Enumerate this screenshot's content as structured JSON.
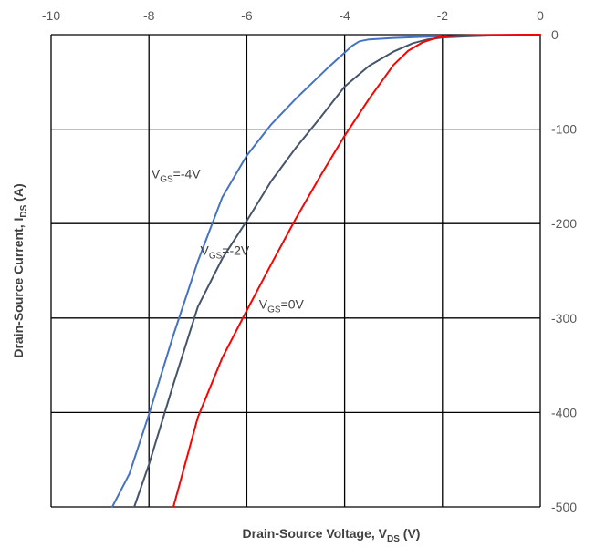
{
  "chart_data": {
    "type": "line",
    "xlabel": {
      "main": "Drain-Source Voltage, V",
      "sub": "DS",
      "tail": " (V)"
    },
    "ylabel": {
      "main": "Drain-Source Current, I",
      "sub": "DS",
      "tail": " (A)"
    },
    "xlim": [
      -10,
      0
    ],
    "ylim": [
      -500,
      0
    ],
    "xticks": [
      "-10",
      "-8",
      "-6",
      "-4",
      "-2",
      "0"
    ],
    "xtick_values": [
      -10,
      -8,
      -6,
      -4,
      -2,
      0
    ],
    "yticks": [
      "0",
      "-100",
      "-200",
      "-300",
      "-400",
      "-500"
    ],
    "ytick_values": [
      0,
      -100,
      -200,
      -300,
      -400,
      -500
    ],
    "grid": true,
    "series": [
      {
        "name": "VGS=-4V",
        "color": "#4472C4",
        "x": [
          -8.75,
          -8.4,
          -8.0,
          -7.5,
          -7.0,
          -6.5,
          -6.0,
          -5.5,
          -5.0,
          -4.6,
          -4.3,
          -4.0,
          -3.85,
          -3.7,
          -3.5,
          -3.0,
          -2.5,
          -2.0,
          -1.5,
          -1.0,
          -0.5,
          0.0
        ],
        "y": [
          -500,
          -465,
          -402,
          -318,
          -240,
          -172,
          -128,
          -95,
          -68,
          -48,
          -33,
          -19,
          -12,
          -7,
          -5,
          -3.5,
          -2.5,
          -1.6,
          -1.0,
          -0.6,
          -0.2,
          0
        ]
      },
      {
        "name": "VGS=-2V",
        "color": "#44546A",
        "x": [
          -8.3,
          -8.0,
          -7.5,
          -7.0,
          -6.5,
          -6.0,
          -5.5,
          -5.0,
          -4.5,
          -4.0,
          -3.5,
          -3.0,
          -2.6,
          -2.3,
          -2.0,
          -1.5,
          -1.0,
          -0.5,
          0.0
        ],
        "y": [
          -500,
          -455,
          -370,
          -288,
          -237,
          -197,
          -155,
          -120,
          -88,
          -55,
          -33,
          -18,
          -9,
          -5,
          -3,
          -1.8,
          -1.0,
          -0.4,
          0
        ]
      },
      {
        "name": "VGS=0V",
        "color": "#FF0000",
        "x": [
          -7.5,
          -7.0,
          -6.5,
          -6.0,
          -5.5,
          -5.0,
          -4.5,
          -4.0,
          -3.5,
          -3.0,
          -2.7,
          -2.4,
          -2.1,
          -1.9,
          -1.5,
          -1.0,
          -0.5,
          0.0
        ],
        "y": [
          -500,
          -405,
          -342,
          -292,
          -243,
          -195,
          -150,
          -107,
          -68,
          -32,
          -17,
          -8,
          -3,
          -1.5,
          -0.8,
          -0.4,
          -0.1,
          0
        ]
      }
    ],
    "annotations": [
      {
        "main": "V",
        "sub": "GS",
        "tail": "=-4V",
        "x": -7.95,
        "y": -152
      },
      {
        "main": "V",
        "sub": "GS",
        "tail": "=-2V",
        "x": -6.95,
        "y": -233
      },
      {
        "main": "V",
        "sub": "GS",
        "tail": "=0V",
        "x": -5.75,
        "y": -290
      }
    ]
  }
}
